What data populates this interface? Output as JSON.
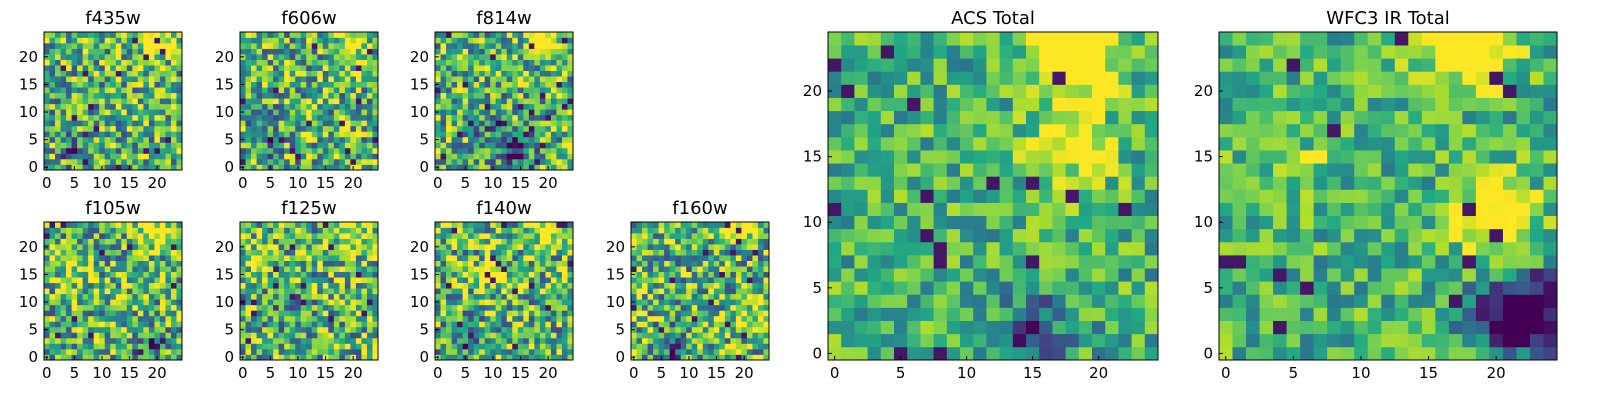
{
  "figure": {
    "panel_titles": [
      "f435w",
      "f606w",
      "f814w",
      "f105w",
      "f125w",
      "f140w",
      "f160w",
      "ACS Total",
      "WFC3 IR Total"
    ]
  },
  "chart_data": [
    {
      "type": "heatmap",
      "title": "f435w",
      "grid_size": 25,
      "xlim": [
        -0.5,
        24.5
      ],
      "ylim": [
        -0.5,
        24.5
      ],
      "xticks": [
        "0",
        "5",
        "10",
        "15",
        "20"
      ],
      "yticks": [
        "0",
        "5",
        "10",
        "15",
        "20"
      ],
      "colormap": "viridis",
      "grid": false,
      "values": "25x25 pixel intensities (not legible; generated per-cell)"
    },
    {
      "type": "heatmap",
      "title": "f606w",
      "grid_size": 25,
      "xlim": [
        -0.5,
        24.5
      ],
      "ylim": [
        -0.5,
        24.5
      ],
      "xticks": [
        "0",
        "5",
        "10",
        "15",
        "20"
      ],
      "yticks": [
        "0",
        "5",
        "10",
        "15",
        "20"
      ],
      "colormap": "viridis",
      "grid": false
    },
    {
      "type": "heatmap",
      "title": "f814w",
      "grid_size": 25,
      "xlim": [
        -0.5,
        24.5
      ],
      "ylim": [
        -0.5,
        24.5
      ],
      "xticks": [
        "0",
        "5",
        "10",
        "15",
        "20"
      ],
      "yticks": [
        "0",
        "5",
        "10",
        "15",
        "20"
      ],
      "colormap": "viridis",
      "grid": false
    },
    {
      "type": "heatmap",
      "title": "f105w",
      "grid_size": 25,
      "xlim": [
        -0.5,
        24.5
      ],
      "ylim": [
        -0.5,
        24.5
      ],
      "xticks": [
        "0",
        "5",
        "10",
        "15",
        "20"
      ],
      "yticks": [
        "0",
        "5",
        "10",
        "15",
        "20"
      ],
      "colormap": "viridis",
      "grid": false
    },
    {
      "type": "heatmap",
      "title": "f125w",
      "grid_size": 25,
      "xlim": [
        -0.5,
        24.5
      ],
      "ylim": [
        -0.5,
        24.5
      ],
      "xticks": [
        "0",
        "5",
        "10",
        "15",
        "20"
      ],
      "yticks": [
        "0",
        "5",
        "10",
        "15",
        "20"
      ],
      "colormap": "viridis",
      "grid": false
    },
    {
      "type": "heatmap",
      "title": "f140w",
      "grid_size": 25,
      "xlim": [
        -0.5,
        24.5
      ],
      "ylim": [
        -0.5,
        24.5
      ],
      "xticks": [
        "0",
        "5",
        "10",
        "15",
        "20"
      ],
      "yticks": [
        "0",
        "5",
        "10",
        "15",
        "20"
      ],
      "colormap": "viridis",
      "grid": false
    },
    {
      "type": "heatmap",
      "title": "f160w",
      "grid_size": 25,
      "xlim": [
        -0.5,
        24.5
      ],
      "ylim": [
        -0.5,
        24.5
      ],
      "xticks": [
        "0",
        "5",
        "10",
        "15",
        "20"
      ],
      "yticks": [
        "0",
        "5",
        "10",
        "15",
        "20"
      ],
      "colormap": "viridis",
      "grid": false
    },
    {
      "type": "heatmap",
      "title": "ACS Total",
      "grid_size": 25,
      "xlim": [
        -0.5,
        24.5
      ],
      "ylim": [
        -0.5,
        24.5
      ],
      "xticks": [
        "0",
        "5",
        "10",
        "15",
        "20"
      ],
      "yticks": [
        "0",
        "5",
        "10",
        "15",
        "20"
      ],
      "colormap": "viridis",
      "grid": false
    },
    {
      "type": "heatmap",
      "title": "WFC3 IR Total",
      "grid_size": 25,
      "xlim": [
        -0.5,
        24.5
      ],
      "ylim": [
        -0.5,
        24.5
      ],
      "xticks": [
        "0",
        "5",
        "10",
        "15",
        "20"
      ],
      "yticks": [
        "0",
        "5",
        "10",
        "15",
        "20"
      ],
      "colormap": "viridis",
      "grid": false
    }
  ],
  "colors": {
    "viridis_dark": "#440154",
    "viridis_blue": "#3b528b",
    "viridis_teal": "#21918c",
    "viridis_green": "#5ec962",
    "viridis_yellow": "#fde725",
    "axis": "#000000",
    "background": "#ffffff"
  }
}
